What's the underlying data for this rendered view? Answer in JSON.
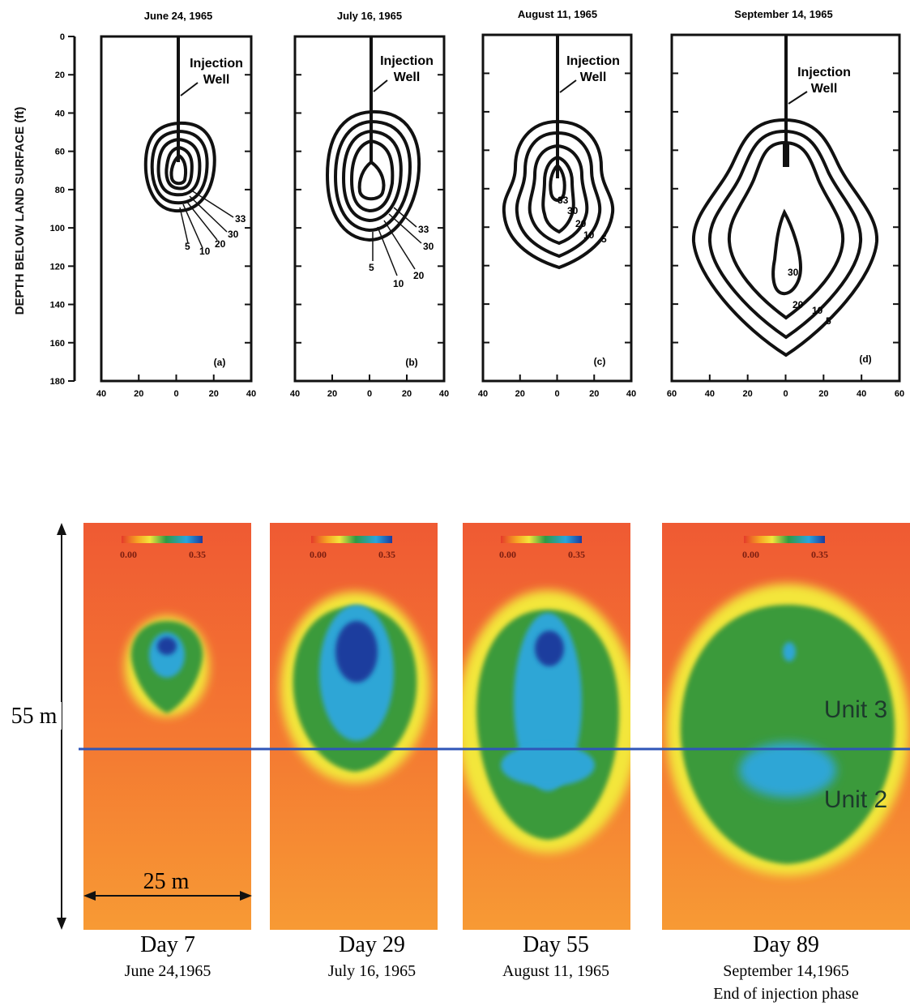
{
  "top": {
    "ylabel": "DEPTH BELOW LAND SURFACE (ft)",
    "yticks": [
      "0",
      "20",
      "40",
      "60",
      "80",
      "100",
      "120",
      "140",
      "160",
      "180"
    ],
    "panels": [
      {
        "title": "June 24, 1965",
        "tag": "(a)",
        "well_label_1": "Injection",
        "well_label_2": "Well",
        "xticks": [
          "40",
          "20",
          "0",
          "20",
          "40"
        ],
        "contour_labels": [
          "33",
          "30",
          "20",
          "10",
          "5"
        ]
      },
      {
        "title": "July 16, 1965",
        "tag": "(b)",
        "well_label_1": "Injection",
        "well_label_2": "Well",
        "xticks": [
          "40",
          "20",
          "0",
          "20",
          "40"
        ],
        "contour_labels": [
          "33",
          "30",
          "20",
          "10",
          "5"
        ]
      },
      {
        "title": "August 11, 1965",
        "tag": "(c)",
        "well_label_1": "Injection",
        "well_label_2": "Well",
        "xticks": [
          "40",
          "20",
          "0",
          "20",
          "40"
        ],
        "contour_labels": [
          "33",
          "30",
          "20",
          "10",
          "5"
        ]
      },
      {
        "title": "September 14, 1965",
        "tag": "(d)",
        "well_label_1": "Injection",
        "well_label_2": "Well",
        "xticks": [
          "60",
          "40",
          "20",
          "0",
          "20",
          "40",
          "60"
        ],
        "contour_labels": [
          "30",
          "20",
          "10",
          "5"
        ]
      }
    ]
  },
  "bottom": {
    "height_label": "55 m",
    "width_label": "25 m",
    "colorbar_min": "0.00",
    "colorbar_max": "0.35",
    "unit_upper": "Unit 3",
    "unit_lower": "Unit 2",
    "panels": [
      {
        "day": "Day 7",
        "date": "June 24,1965",
        "note": ""
      },
      {
        "day": "Day 29",
        "date": "July 16, 1965",
        "note": ""
      },
      {
        "day": "Day 55",
        "date": "August 11, 1965",
        "note": ""
      },
      {
        "day": "Day 89",
        "date": "September 14,1965",
        "note": "End of injection phase"
      }
    ]
  }
}
